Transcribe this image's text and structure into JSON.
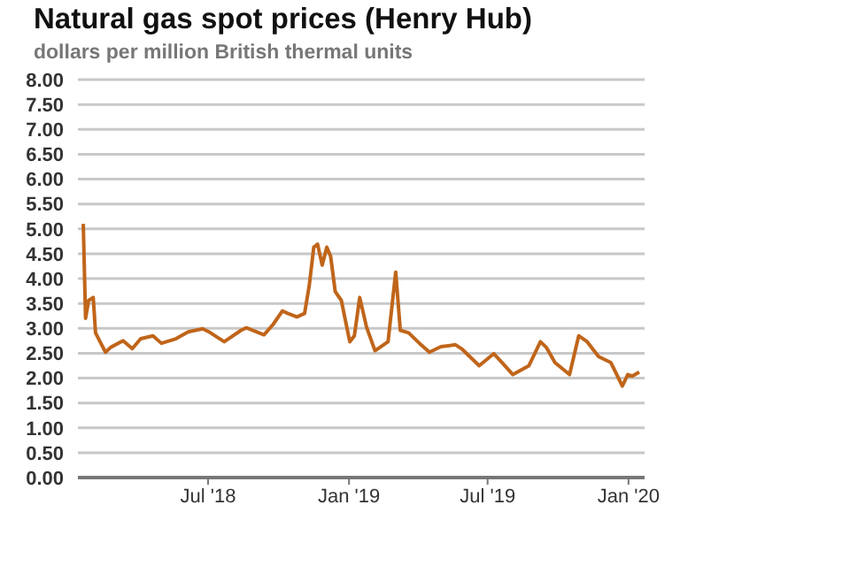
{
  "chart_data": {
    "type": "line",
    "title": "Natural gas spot prices (Henry Hub)",
    "ylabel": "dollars per million British thermal units",
    "x": [
      "2018-01-19",
      "2018-01-22",
      "2018-01-26",
      "2018-02-01",
      "2018-02-04",
      "2018-02-17",
      "2018-02-24",
      "2018-03-12",
      "2018-03-24",
      "2018-04-04",
      "2018-04-20",
      "2018-05-01",
      "2018-05-20",
      "2018-06-05",
      "2018-06-24",
      "2018-07-02",
      "2018-07-22",
      "2018-08-13",
      "2018-08-20",
      "2018-09-12",
      "2018-09-24",
      "2018-10-06",
      "2018-10-13",
      "2018-10-25",
      "2018-11-04",
      "2018-11-10",
      "2018-11-16",
      "2018-11-21",
      "2018-11-27",
      "2018-12-03",
      "2018-12-08",
      "2018-12-14",
      "2018-12-22",
      "2019-01-02",
      "2019-01-08",
      "2019-01-15",
      "2019-01-24",
      "2019-02-04",
      "2019-02-21",
      "2019-03-03",
      "2019-03-09",
      "2019-03-20",
      "2019-04-05",
      "2019-04-16",
      "2019-05-01",
      "2019-05-20",
      "2019-05-28",
      "2019-06-20",
      "2019-07-09",
      "2019-07-20",
      "2019-08-03",
      "2019-08-24",
      "2019-09-08",
      "2019-09-16",
      "2019-09-27",
      "2019-10-16",
      "2019-10-28",
      "2019-11-08",
      "2019-11-23",
      "2019-12-09",
      "2019-12-24",
      "2019-12-31",
      "2020-01-06",
      "2020-01-15"
    ],
    "series": [
      {
        "color": "#c0651a",
        "values": [
          5.1,
          3.2,
          3.56,
          3.62,
          2.91,
          2.52,
          2.62,
          2.75,
          2.59,
          2.79,
          2.85,
          2.7,
          2.79,
          2.93,
          2.99,
          2.93,
          2.73,
          2.96,
          3.01,
          2.87,
          3.08,
          3.35,
          3.3,
          3.23,
          3.3,
          3.85,
          4.63,
          4.69,
          4.27,
          4.63,
          4.45,
          3.74,
          3.56,
          2.73,
          2.85,
          3.62,
          3.02,
          2.55,
          2.73,
          4.13,
          2.96,
          2.91,
          2.67,
          2.52,
          2.63,
          2.67,
          2.59,
          2.25,
          2.49,
          2.31,
          2.07,
          2.25,
          2.73,
          2.61,
          2.31,
          2.07,
          2.85,
          2.73,
          2.43,
          2.31,
          1.84,
          2.07,
          2.04,
          2.12
        ]
      }
    ],
    "xlim": [
      "2018-01-12",
      "2020-01-22"
    ],
    "xticks": [
      {
        "value": "2018-07-01",
        "label": "Jul '18"
      },
      {
        "value": "2019-01-01",
        "label": "Jan '19"
      },
      {
        "value": "2019-07-01",
        "label": "Jul '19"
      },
      {
        "value": "2020-01-01",
        "label": "Jan '20"
      }
    ],
    "ylim": [
      0,
      8
    ],
    "yticks": [
      {
        "value": 0,
        "label": "0.00"
      },
      {
        "value": 0.5,
        "label": "0.50"
      },
      {
        "value": 1,
        "label": "1.00"
      },
      {
        "value": 1.5,
        "label": "1.50"
      },
      {
        "value": 2,
        "label": "2.00"
      },
      {
        "value": 2.5,
        "label": "2.50"
      },
      {
        "value": 3,
        "label": "3.00"
      },
      {
        "value": 3.5,
        "label": "3.50"
      },
      {
        "value": 4,
        "label": "4.00"
      },
      {
        "value": 4.5,
        "label": "4.50"
      },
      {
        "value": 5,
        "label": "5.00"
      },
      {
        "value": 5.5,
        "label": "5.50"
      },
      {
        "value": 6,
        "label": "6.00"
      },
      {
        "value": 6.5,
        "label": "6.50"
      },
      {
        "value": 7,
        "label": "7.00"
      },
      {
        "value": 7.5,
        "label": "7.50"
      },
      {
        "value": 8,
        "label": "8.00"
      }
    ],
    "grid": "y",
    "marker": "none",
    "line_style": "solid"
  }
}
